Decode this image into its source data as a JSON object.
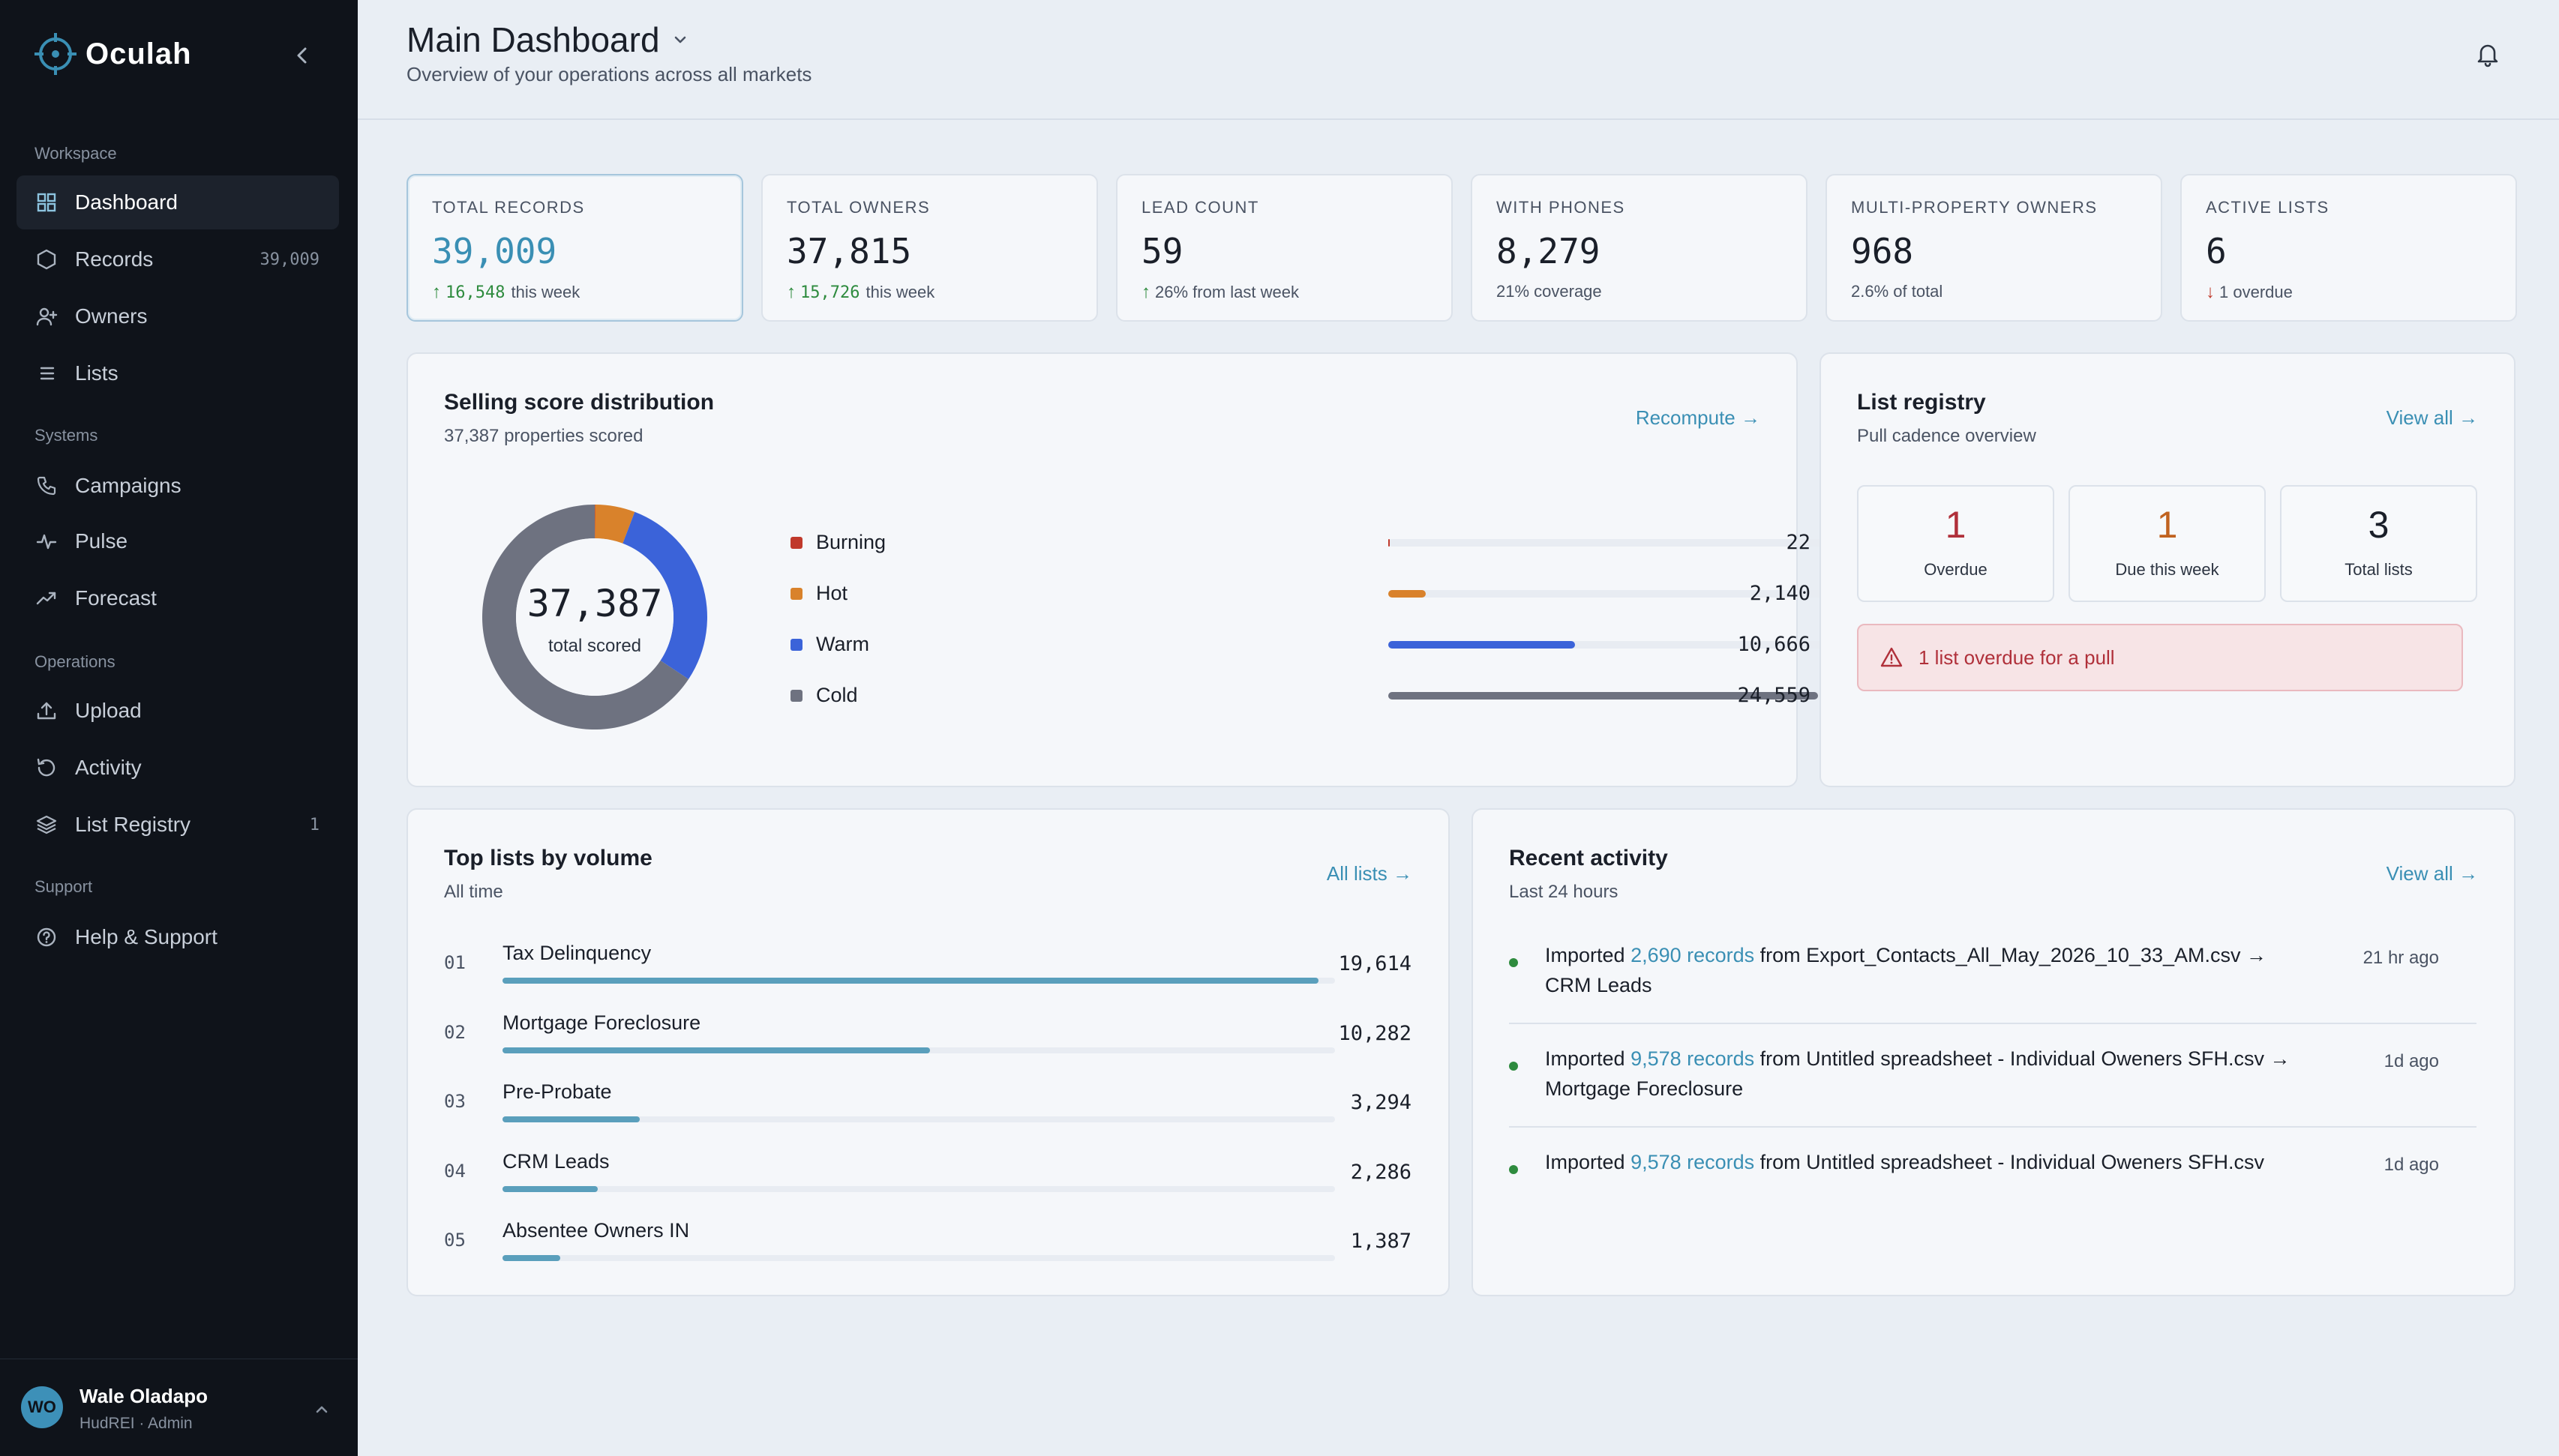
{
  "brand": {
    "name": "Oculah",
    "accent": "#3a8fb4"
  },
  "sidebar": {
    "sections": [
      {
        "label": "Workspace"
      },
      {
        "label": "Systems"
      },
      {
        "label": "Operations"
      },
      {
        "label": "Support"
      }
    ],
    "items": [
      {
        "label": "Dashboard",
        "icon": "grid-icon",
        "active": true
      },
      {
        "label": "Records",
        "icon": "hexagon-icon",
        "count": "39,009"
      },
      {
        "label": "Owners",
        "icon": "user-plus-icon"
      },
      {
        "label": "Lists",
        "icon": "list-icon"
      },
      {
        "label": "Campaigns",
        "icon": "phone-icon"
      },
      {
        "label": "Pulse",
        "icon": "pulse-icon"
      },
      {
        "label": "Forecast",
        "icon": "trend-icon"
      },
      {
        "label": "Upload",
        "icon": "upload-icon"
      },
      {
        "label": "Activity",
        "icon": "history-icon"
      },
      {
        "label": "List Registry",
        "icon": "layers-icon",
        "count": "1"
      },
      {
        "label": "Help & Support",
        "icon": "help-icon"
      }
    ],
    "user": {
      "initials": "WO",
      "name": "Wale Oladapo",
      "role": "HudREI · Admin"
    }
  },
  "header": {
    "title": "Main Dashboard",
    "subtitle": "Overview of your operations across all markets"
  },
  "stats": [
    {
      "label": "TOTAL RECORDS",
      "value": "39,009",
      "delta": "16,548",
      "note": "this week",
      "trend": "up"
    },
    {
      "label": "TOTAL OWNERS",
      "value": "37,815",
      "delta": "15,726",
      "note": "this week",
      "trend": "up"
    },
    {
      "label": "LEAD COUNT",
      "value": "59",
      "delta": "",
      "note": "26% from last week",
      "trend": "up"
    },
    {
      "label": "WITH PHONES",
      "value": "8,279",
      "delta": "",
      "note": "21% coverage",
      "trend": "none"
    },
    {
      "label": "MULTI-PROPERTY OWNERS",
      "value": "968",
      "delta": "",
      "note": "2.6% of total",
      "trend": "none"
    },
    {
      "label": "ACTIVE LISTS",
      "value": "6",
      "delta": "",
      "note": "1 overdue",
      "trend": "down"
    }
  ],
  "distribution": {
    "title": "Selling score distribution",
    "subtitle": "37,387 properties scored",
    "link": "Recompute →",
    "total": "37,387",
    "total_label": "total scored",
    "rows": [
      {
        "name": "Burning",
        "value": 22,
        "display": "22",
        "color": "#c0392b"
      },
      {
        "name": "Hot",
        "value": 2140,
        "display": "2,140",
        "color": "#d9822b"
      },
      {
        "name": "Warm",
        "value": 10666,
        "display": "10,666",
        "color": "#3b63d9"
      },
      {
        "name": "Cold",
        "value": 24559,
        "display": "24,559",
        "color": "#6e7280"
      }
    ]
  },
  "registry": {
    "title": "List registry",
    "subtitle": "Pull cadence overview",
    "link": "View all →",
    "boxes": [
      {
        "value": "1",
        "label": "Overdue",
        "color": "#b0303a"
      },
      {
        "value": "1",
        "label": "Due this week",
        "color": "#c0621f"
      },
      {
        "value": "3",
        "label": "Total lists",
        "color": "#1a1f29"
      }
    ],
    "alert": "1 list overdue for a pull"
  },
  "top_lists": {
    "title": "Top lists by volume",
    "subtitle": "All time",
    "link": "All lists →",
    "rows": [
      {
        "idx": "01",
        "name": "Tax Delinquency",
        "value": 19614,
        "display": "19,614"
      },
      {
        "idx": "02",
        "name": "Mortgage Foreclosure",
        "value": 10282,
        "display": "10,282"
      },
      {
        "idx": "03",
        "name": "Pre-Probate",
        "value": 3294,
        "display": "3,294"
      },
      {
        "idx": "04",
        "name": "CRM Leads",
        "value": 2286,
        "display": "2,286"
      },
      {
        "idx": "05",
        "name": "Absentee Owners IN",
        "value": 1387,
        "display": "1,387"
      }
    ]
  },
  "activity": {
    "title": "Recent activity",
    "subtitle": "Last 24 hours",
    "link": "View all →",
    "rows": [
      {
        "prefix": "Imported ",
        "highlight": "2,690 records",
        "suffix": " from Export_Contacts_All_May_2026_10_33_AM.csv → CRM Leads",
        "time": "21 hr ago"
      },
      {
        "prefix": "Imported ",
        "highlight": "9,578 records",
        "suffix": " from Untitled spreadsheet - Individual Oweners SFH.csv → Mortgage Foreclosure",
        "time": "1d ago"
      },
      {
        "prefix": "Imported ",
        "highlight": "9,578 records",
        "suffix": " from Untitled spreadsheet - Individual Oweners SFH.csv",
        "time": "1d ago"
      }
    ]
  }
}
